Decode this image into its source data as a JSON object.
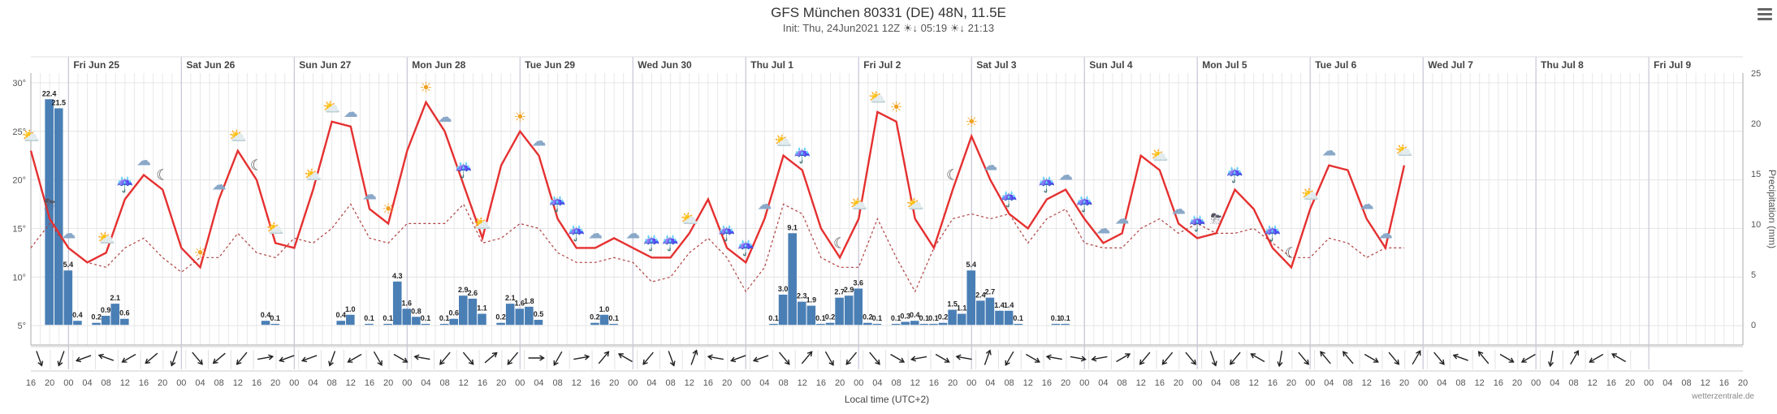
{
  "header": {
    "title": "GFS München 80331 (DE) 48N, 11.5E",
    "init_text": "Init: Thu, 24Jun2021 12Z",
    "sunrise": "05:19",
    "sunset": "21:13"
  },
  "credit": "wetterzentrale.de",
  "chart_data": {
    "type": "bar-line",
    "xlabel": "Local time (UTC+2)",
    "ylabel_right": "Precipitation (mm)",
    "y_left": {
      "ticks": [
        "5°",
        "10°",
        "15°",
        "20°",
        "25°",
        "30°"
      ],
      "values": [
        5,
        10,
        15,
        20,
        25,
        30
      ],
      "range": [
        3,
        31
      ]
    },
    "y_right": {
      "ticks": [
        "0",
        "5",
        "10",
        "15",
        "20",
        "25"
      ],
      "values": [
        0,
        5,
        10,
        15,
        20,
        25
      ],
      "range": [
        -2,
        25
      ]
    },
    "day_labels": [
      "Fri Jun 25",
      "Sat Jun 26",
      "Sun Jun 27",
      "Mon Jun 28",
      "Tue Jun 29",
      "Wed Jun 30",
      "Thu Jul 1",
      "Fri Jul 2",
      "Sat Jul 3",
      "Sun Jul 4",
      "Mon Jul 5",
      "Tue Jul 6",
      "Wed Jul 7",
      "Thu Jul 8",
      "Fri Jul 9"
    ],
    "x_ticks": [
      "16",
      "20",
      "00",
      "04",
      "08",
      "12",
      "16",
      "20",
      "00",
      "04",
      "08",
      "12",
      "16",
      "20",
      "00",
      "04",
      "08",
      "12",
      "16",
      "20",
      "00",
      "04",
      "08",
      "12",
      "16",
      "20",
      "00",
      "04",
      "08",
      "12",
      "16",
      "20",
      "00",
      "04",
      "08",
      "12",
      "16",
      "20",
      "00",
      "04",
      "08",
      "12",
      "16",
      "20",
      "00",
      "04",
      "08",
      "12",
      "16",
      "20",
      "00",
      "04",
      "08",
      "12",
      "16",
      "20",
      "00",
      "04",
      "08",
      "12",
      "16",
      "20",
      "00",
      "04",
      "08",
      "12",
      "16",
      "20",
      "00",
      "04",
      "08",
      "12",
      "16",
      "20",
      "00",
      "04",
      "08",
      "12",
      "16",
      "20",
      "00",
      "04",
      "08",
      "12",
      "16",
      "20",
      "00",
      "04",
      "08",
      "12",
      "16",
      "20"
    ],
    "temperature": [
      23,
      16,
      13,
      11.5,
      12.5,
      18,
      20.5,
      19,
      13,
      11,
      18,
      23,
      20,
      13.5,
      13,
      19,
      26,
      25.5,
      17,
      15.5,
      23,
      28,
      25,
      19.5,
      14,
      21.5,
      25,
      22.5,
      16,
      13,
      13,
      14,
      13,
      12,
      12,
      14.5,
      18,
      13,
      11.5,
      16,
      22.5,
      21,
      15,
      12,
      16,
      27,
      26,
      16,
      13,
      19,
      24.5,
      20,
      16.5,
      15,
      18,
      19,
      16,
      13.5,
      14.5,
      22.5,
      21,
      15.5,
      14,
      14.5,
      19,
      17,
      13,
      11,
      17,
      21.5,
      21,
      16,
      13,
      21.5
    ],
    "dewpoint": [
      13,
      15.5,
      13,
      11.5,
      11,
      13,
      14,
      12,
      10.5,
      12,
      12,
      14.5,
      12.5,
      12,
      14,
      13.5,
      15,
      17.5,
      14,
      13.5,
      15.5,
      15.5,
      15.5,
      17.5,
      13.5,
      14,
      15.5,
      15,
      12.5,
      11.5,
      11.5,
      12,
      11.5,
      9.5,
      10,
      12.5,
      14,
      12,
      8.5,
      11,
      17.5,
      16.5,
      12,
      11,
      11,
      16,
      12,
      8.5,
      13,
      16,
      16.5,
      16,
      16.5,
      13.5,
      16,
      17,
      13.5,
      13,
      13,
      15,
      16,
      14.5,
      15.5,
      14.5,
      14.5,
      15,
      13.5,
      12,
      12,
      14,
      13.5,
      12,
      13,
      13
    ],
    "precip_labels": [
      "22.4",
      "21.5",
      "5.4",
      "0.4",
      "0.2",
      "0.9",
      "2.1",
      "0.6",
      "0.4",
      "0.1",
      "0.4",
      "1.0",
      "0.1",
      "0.1",
      "4.3",
      "1.6",
      "0.8",
      "0.1",
      "0.1",
      "0.6",
      "2.9",
      "2.6",
      "1.1",
      "0.2",
      "2.1",
      "1.6",
      "1.8",
      "0.5",
      "0.2",
      "1.0",
      "0.1",
      "0.1",
      "3.0",
      "9.1",
      "2.3",
      "1.9",
      "0.1",
      "0.2",
      "2.7",
      "2.9",
      "3.6",
      "0.2",
      "0.1",
      "0.1",
      "0.3",
      "0.4",
      "0.1",
      "0.1",
      "0.2",
      "1.5",
      "1.1",
      "5.4",
      "2.4",
      "2.7",
      "1.4",
      "1.4",
      "0.1",
      "0.1",
      "0.1"
    ],
    "precip": [
      0,
      22.4,
      21.5,
      5.4,
      0.4,
      0,
      0.2,
      0.9,
      2.1,
      0.6,
      0,
      0,
      0,
      0,
      0,
      0,
      0,
      0,
      0,
      0,
      0,
      0,
      0,
      0,
      0.4,
      0.1,
      0,
      0,
      0,
      0,
      0,
      0,
      0.4,
      1.0,
      0,
      0.1,
      0,
      0.1,
      4.3,
      1.6,
      0.8,
      0.1,
      0,
      0.1,
      0.6,
      2.9,
      2.6,
      1.1,
      0,
      0.2,
      2.1,
      1.6,
      1.8,
      0.5,
      0,
      0,
      0,
      0,
      0,
      0.2,
      1.0,
      0.1,
      0,
      0,
      0,
      0,
      0,
      0,
      0,
      0,
      0,
      0,
      0,
      0,
      0,
      0,
      0,
      0,
      0.1,
      3.0,
      9.1,
      2.3,
      1.9,
      0.1,
      0.2,
      2.7,
      2.9,
      3.6,
      0.2,
      0.1,
      0,
      0.1,
      0.3,
      0.4,
      0.1,
      0.1,
      0.2,
      1.5,
      1.1,
      5.4,
      2.4,
      2.7,
      1.4,
      1.4,
      0.1,
      0,
      0,
      0,
      0.1,
      0.1,
      0,
      0,
      0,
      0
    ],
    "wind_dir_deg": [
      340,
      20,
      70,
      110,
      60,
      50,
      20,
      320,
      50,
      40,
      260,
      70,
      70,
      20,
      60,
      330,
      300,
      100,
      40,
      320,
      230,
      40,
      270,
      30,
      260,
      220,
      120,
      40,
      340,
      200,
      100,
      70,
      70,
      320,
      220,
      330,
      40,
      320,
      300,
      80,
      300,
      100,
      200,
      30,
      300,
      100,
      280,
      80,
      240,
      40,
      40,
      320,
      340,
      40,
      120,
      10,
      320,
      140,
      140,
      300,
      320,
      210,
      320,
      110,
      140,
      300,
      60,
      10,
      210,
      60,
      120
    ],
    "weather_icons": [
      "partly-sunny",
      "thunderstorm",
      "cloud",
      "partly-sunny",
      "rain",
      "cloud",
      "moon",
      "sun",
      "cloud",
      "partly-sunny",
      "moon",
      "partly-sunny",
      "partly-sunny",
      "partly-sunny",
      "cloud",
      "cloud",
      "sun",
      "sun",
      "cloud",
      "rain",
      "partly-sunny",
      "sun",
      "cloud",
      "rain",
      "rain",
      "cloud",
      "cloud",
      "rain",
      "rain",
      "partly-sunny",
      "rain",
      "rain",
      "cloud",
      "partly-sunny",
      "rain",
      "moon",
      "partly-sunny",
      "partly-sunny",
      "sun",
      "partly-sunny",
      "moon",
      "sun",
      "cloud",
      "rain",
      "rain",
      "cloud",
      "rain",
      "cloud",
      "cloud",
      "partly-sunny",
      "cloud",
      "rain",
      "thunderstorm",
      "rain",
      "rain",
      "moon",
      "partly-sunny",
      "cloud",
      "cloud",
      "cloud",
      "partly-sunny"
    ],
    "colors": {
      "temp": "#e53030",
      "dew": "#b04040",
      "bar": "#4a7fb5",
      "grid": "#e8e8e8",
      "day": "#c7c7d8"
    }
  }
}
